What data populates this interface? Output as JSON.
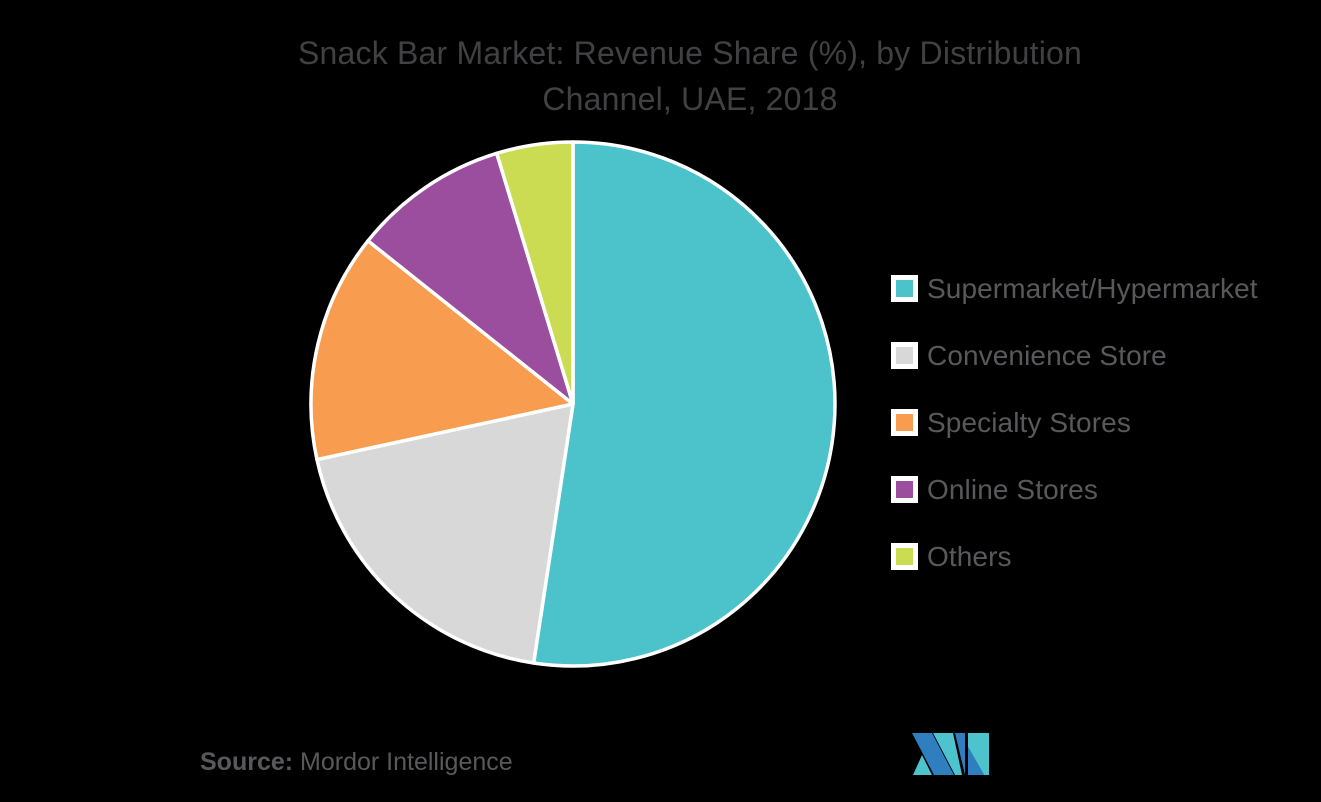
{
  "canvas": {
    "background": "#000000"
  },
  "header": {
    "title_lines": {
      "line1": "Snack Bar Market: Revenue Share (%), by Distribution",
      "line2": "Channel, UAE, 2018"
    },
    "title_color": "#414042"
  },
  "chart_data": {
    "type": "pie",
    "title": "Snack Bar Market: Revenue Share (%), by Distribution Channel, UAE, 2018",
    "categories": [
      "Supermarket/Hypermarket",
      "Convenience Store",
      "Specialty Stores",
      "Online Stores",
      "Others"
    ],
    "values": [
      52.4,
      19.2,
      14.1,
      9.6,
      4.7
    ],
    "values_are_estimates_from_angles": true,
    "unit": "%",
    "colors": [
      "#4CC2CB",
      "#D8D8D8",
      "#F89C50",
      "#9B4D9E",
      "#CBDB52"
    ],
    "slice_border_color": "#FFFFFF",
    "start_angle_deg": 0,
    "direction": "clockwise",
    "legend_position": "right",
    "data_labels_shown": false
  },
  "legend": {
    "text_color": "#58595B",
    "items": [
      {
        "label": "Supermarket/Hypermarket",
        "color": "#4CC2CB"
      },
      {
        "label": "Convenience Store",
        "color": "#D8D8D8"
      },
      {
        "label": "Specialty Stores",
        "color": "#F89C50"
      },
      {
        "label": "Online Stores",
        "color": "#9B4D9E"
      },
      {
        "label": "Others",
        "color": "#CBDB52"
      }
    ]
  },
  "source": {
    "prefix": "Source:",
    "text": " Mordor Intelligence",
    "color": "#58595B"
  },
  "logo": {
    "name": "mordor-intelligence-logo",
    "blue": "#2E7EC0",
    "teal": "#4DC3CD"
  }
}
